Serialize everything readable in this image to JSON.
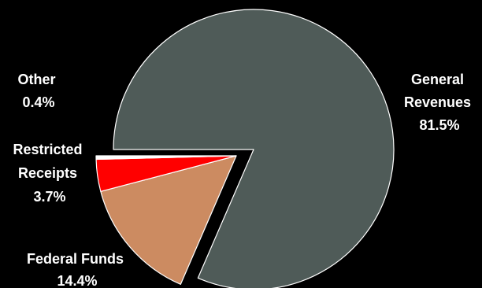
{
  "chart_data": {
    "type": "pie",
    "title": "",
    "slices": [
      {
        "label_lines": [
          "General",
          "Revenues"
        ],
        "value": 81.5,
        "value_label": "81.5%",
        "color": "#4F5B58"
      },
      {
        "label_lines": [
          "Federal Funds"
        ],
        "value": 14.4,
        "value_label": "14.4%",
        "color": "#CC8B61"
      },
      {
        "label_lines": [
          "Restricted",
          "Receipts"
        ],
        "value": 3.7,
        "value_label": "3.7%",
        "color": "#FF0000"
      },
      {
        "label_lines": [
          "Other"
        ],
        "value": 0.4,
        "value_label": "0.4%",
        "color": "#FFFFFF"
      }
    ],
    "slice_outline_color": "#FFFFFF",
    "legend": "none",
    "exploded": [
      "Federal Funds",
      "Restricted Receipts",
      "Other"
    ]
  }
}
